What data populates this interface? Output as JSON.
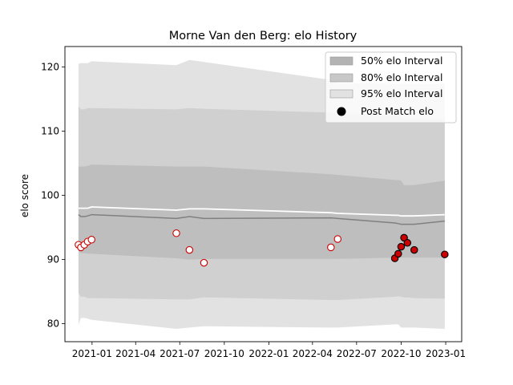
{
  "chart_data": {
    "type": "line",
    "title": "Morne Van den Berg: elo History",
    "xlabel": "",
    "ylabel": "elo score",
    "xlim": [
      "2020-11-06",
      "2023-02-03"
    ],
    "ylim": [
      77.2,
      123.2
    ],
    "yticks": [
      80,
      90,
      100,
      110,
      120
    ],
    "xticks": [
      {
        "date": "2021-01-01",
        "label": "2021-01"
      },
      {
        "date": "2021-04-01",
        "label": "2021-04"
      },
      {
        "date": "2021-07-01",
        "label": "2021-07"
      },
      {
        "date": "2021-10-01",
        "label": "2021-10"
      },
      {
        "date": "2022-01-01",
        "label": "2022-01"
      },
      {
        "date": "2022-04-01",
        "label": "2022-04"
      },
      {
        "date": "2022-07-01",
        "label": "2022-07"
      },
      {
        "date": "2022-10-01",
        "label": "2022-10"
      },
      {
        "date": "2023-01-01",
        "label": "2023-01"
      }
    ],
    "grid": false,
    "legend_position": "top-right",
    "legend": [
      {
        "label": "50% elo Interval",
        "color": "#b3b3b3",
        "kind": "patch"
      },
      {
        "label": "80% elo Interval",
        "color": "#c8c8c8",
        "kind": "patch"
      },
      {
        "label": "95% elo Interval",
        "color": "#e2e2e2",
        "kind": "patch"
      },
      {
        "label": "Post Match elo",
        "color": "#000000",
        "kind": "marker"
      }
    ],
    "dates": [
      "2020-12-04",
      "2020-12-09",
      "2020-12-16",
      "2020-12-23",
      "2020-12-31",
      "2021-06-24",
      "2021-07-21",
      "2021-08-20",
      "2022-05-09",
      "2022-05-23",
      "2022-09-18",
      "2022-09-25",
      "2022-10-01",
      "2022-10-07",
      "2022-10-14",
      "2022-10-28",
      "2022-12-30"
    ],
    "band_95": {
      "upper": [
        120.5,
        120.6,
        120.6,
        120.6,
        120.9,
        120.3,
        121.1,
        120.8,
        118.0,
        117.5,
        117.4,
        117.4,
        117.4,
        117.4,
        117.4,
        117.4,
        117.4
      ],
      "lower": [
        79.8,
        80.9,
        80.9,
        80.8,
        80.6,
        79.2,
        79.4,
        79.6,
        79.4,
        79.4,
        79.9,
        79.9,
        79.4,
        79.4,
        79.4,
        79.4,
        79.2
      ]
    },
    "band_80": {
      "upper": [
        113.9,
        113.4,
        113.4,
        113.6,
        113.6,
        113.4,
        113.6,
        113.5,
        112.9,
        112.9,
        112.4,
        112.4,
        112.0,
        112.0,
        112.0,
        112.0,
        112.0
      ],
      "lower": [
        84.8,
        84.2,
        84.2,
        84.0,
        84.0,
        83.8,
        83.8,
        84.1,
        83.7,
        83.7,
        84.2,
        84.3,
        84.2,
        84.1,
        84.1,
        84.0,
        83.9
      ],
      "color": "#d0d0d0"
    },
    "band_50": {
      "upper": [
        104.5,
        104.5,
        104.5,
        104.6,
        104.8,
        104.5,
        104.5,
        104.5,
        103.3,
        103.2,
        102.4,
        102.4,
        102.3,
        101.6,
        101.6,
        101.6,
        102.3
      ],
      "lower": [
        91.3,
        91.0,
        91.0,
        90.9,
        90.9,
        90.2,
        90.0,
        90.1,
        90.1,
        90.1,
        90.3,
        90.3,
        90.3,
        90.3,
        90.3,
        90.3,
        90.3
      ],
      "color": "#bebebe"
    },
    "mean_line": [
      98.0,
      98.0,
      98.0,
      98.0,
      98.2,
      97.7,
      97.9,
      97.9,
      97.3,
      97.2,
      96.9,
      96.9,
      96.8,
      96.8,
      96.8,
      96.8,
      97.0
    ],
    "median_line": [
      97.0,
      96.7,
      96.7,
      96.8,
      97.0,
      96.4,
      96.7,
      96.4,
      96.5,
      96.4,
      95.7,
      95.6,
      95.5,
      95.5,
      95.5,
      95.5,
      96.0
    ],
    "points": [
      {
        "date": "2020-12-04",
        "elo": 92.3,
        "filled": false
      },
      {
        "date": "2020-12-09",
        "elo": 91.9,
        "filled": false
      },
      {
        "date": "2020-12-16",
        "elo": 92.3,
        "filled": false
      },
      {
        "date": "2020-12-23",
        "elo": 92.8,
        "filled": false
      },
      {
        "date": "2020-12-31",
        "elo": 93.1,
        "filled": false
      },
      {
        "date": "2021-06-24",
        "elo": 94.1,
        "filled": false
      },
      {
        "date": "2021-07-21",
        "elo": 91.5,
        "filled": false
      },
      {
        "date": "2021-08-20",
        "elo": 89.5,
        "filled": false
      },
      {
        "date": "2022-05-09",
        "elo": 91.9,
        "filled": false
      },
      {
        "date": "2022-05-23",
        "elo": 93.2,
        "filled": false
      },
      {
        "date": "2022-09-18",
        "elo": 90.2,
        "filled": true
      },
      {
        "date": "2022-09-25",
        "elo": 90.9,
        "filled": true
      },
      {
        "date": "2022-10-01",
        "elo": 92.0,
        "filled": true
      },
      {
        "date": "2022-10-07",
        "elo": 93.4,
        "filled": true
      },
      {
        "date": "2022-10-14",
        "elo": 92.6,
        "filled": true
      },
      {
        "date": "2022-10-28",
        "elo": 91.5,
        "filled": true
      },
      {
        "date": "2022-12-30",
        "elo": 90.8,
        "filled": true
      }
    ],
    "colors": {
      "band_95": "#e2e2e2",
      "band_80": "#d0d0d0",
      "band_50": "#bebebe",
      "mean_line": "#ffffff",
      "median_line": "#808080",
      "point_edge": "#cc0000",
      "point_fill_filled": "#cc0000",
      "point_fill_open": "#ffffff"
    }
  }
}
